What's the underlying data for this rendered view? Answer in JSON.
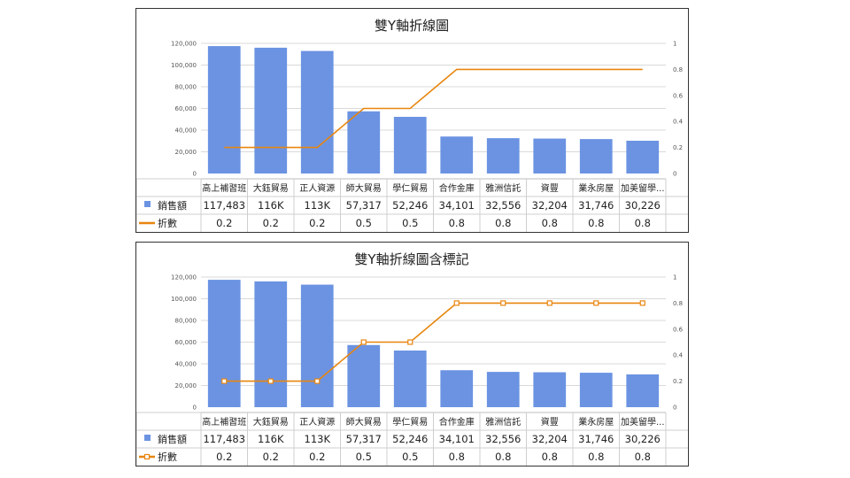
{
  "colors": {
    "bar": "#6b93e2",
    "line": "#e8860f",
    "grid": "#d9d9d9",
    "frame": "#333333"
  },
  "chart_data": [
    {
      "type": "bar",
      "title": "雙Y軸折線圖",
      "markers": false,
      "categories": [
        "高上補習班",
        "大鈺貿易",
        "正人資源",
        "師大貿易",
        "學仁貿易",
        "合作金庫",
        "雅洲信託",
        "資豐",
        "業永房屋",
        "加美留學..."
      ],
      "series": [
        {
          "name": "銷售額",
          "type": "bar",
          "axis": "left",
          "values": [
            117483,
            116000,
            113000,
            57317,
            52246,
            34101,
            32556,
            32204,
            31746,
            30226
          ],
          "labels": [
            "117,483",
            "116K",
            "113K",
            "57,317",
            "52,246",
            "34,101",
            "32,556",
            "32,204",
            "31,746",
            "30,226"
          ]
        },
        {
          "name": "折數",
          "type": "line",
          "axis": "right",
          "values": [
            0.2,
            0.2,
            0.2,
            0.5,
            0.5,
            0.8,
            0.8,
            0.8,
            0.8,
            0.8
          ],
          "labels": [
            "0.2",
            "0.2",
            "0.2",
            "0.5",
            "0.5",
            "0.8",
            "0.8",
            "0.8",
            "0.8",
            "0.8"
          ]
        }
      ],
      "y_left": {
        "ylim": [
          0,
          120000
        ],
        "ticks": [
          "0",
          "20,000",
          "40,000",
          "60,000",
          "80,000",
          "100,000",
          "120,000"
        ]
      },
      "y_right": {
        "ylim": [
          0,
          1
        ],
        "ticks": [
          "0",
          "0.2",
          "0.4",
          "0.6",
          "0.8",
          "1"
        ]
      },
      "grid": true,
      "legend": "data-table"
    },
    {
      "type": "bar",
      "title": "雙Y軸折線圖含標記",
      "markers": true,
      "categories": [
        "高上補習班",
        "大鈺貿易",
        "正人資源",
        "師大貿易",
        "學仁貿易",
        "合作金庫",
        "雅洲信託",
        "資豐",
        "業永房屋",
        "加美留學..."
      ],
      "series": [
        {
          "name": "銷售額",
          "type": "bar",
          "axis": "left",
          "values": [
            117483,
            116000,
            113000,
            57317,
            52246,
            34101,
            32556,
            32204,
            31746,
            30226
          ],
          "labels": [
            "117,483",
            "116K",
            "113K",
            "57,317",
            "52,246",
            "34,101",
            "32,556",
            "32,204",
            "31,746",
            "30,226"
          ]
        },
        {
          "name": "折數",
          "type": "line",
          "axis": "right",
          "values": [
            0.2,
            0.2,
            0.2,
            0.5,
            0.5,
            0.8,
            0.8,
            0.8,
            0.8,
            0.8
          ],
          "labels": [
            "0.2",
            "0.2",
            "0.2",
            "0.5",
            "0.5",
            "0.8",
            "0.8",
            "0.8",
            "0.8",
            "0.8"
          ]
        }
      ],
      "y_left": {
        "ylim": [
          0,
          120000
        ],
        "ticks": [
          "0",
          "20,000",
          "40,000",
          "60,000",
          "80,000",
          "100,000",
          "120,000"
        ]
      },
      "y_right": {
        "ylim": [
          0,
          1
        ],
        "ticks": [
          "0",
          "0.2",
          "0.4",
          "0.6",
          "0.8",
          "1"
        ]
      },
      "grid": true,
      "legend": "data-table"
    }
  ]
}
